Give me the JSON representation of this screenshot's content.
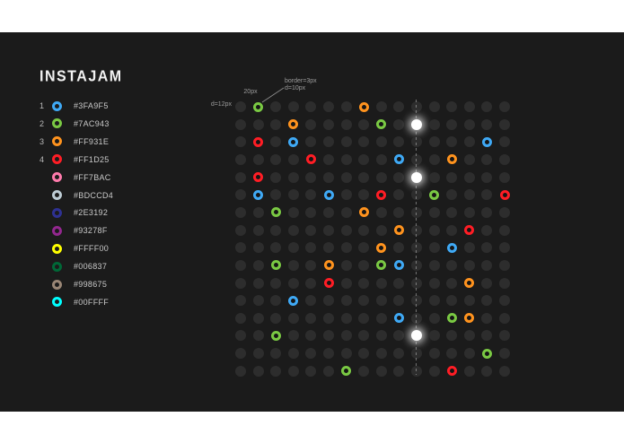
{
  "title": "INSTAJAM",
  "colors": {
    "page_bg": "#FFFFFF",
    "canvas_bg": "#1B1B1B",
    "grid_dot": "#2D2D2D",
    "white_dot": "#FFFFFF",
    "text": "#C9C9C9",
    "annotation_text": "#9C9C9C"
  },
  "palette": [
    {
      "number": "1",
      "hex": "#3FA9F5"
    },
    {
      "number": "2",
      "hex": "#7AC943"
    },
    {
      "number": "3",
      "hex": "#FF931E"
    },
    {
      "number": "4",
      "hex": "#FF1D25"
    },
    {
      "number": "",
      "hex": "#FF7BAC"
    },
    {
      "number": "",
      "hex": "#BDCCD4"
    },
    {
      "number": "",
      "hex": "#2E3192"
    },
    {
      "number": "",
      "hex": "#93278F"
    },
    {
      "number": "",
      "hex": "#FFFF00"
    },
    {
      "number": "",
      "hex": "#006837"
    },
    {
      "number": "",
      "hex": "#998675"
    },
    {
      "number": "",
      "hex": "#00FFFF"
    }
  ],
  "annotations": {
    "dot_diameter_label": "d=12px",
    "spacing_label": "20px",
    "border_label": "border=3px",
    "ring_diameter_label": "d=10px"
  },
  "grid": {
    "cols": 16,
    "rows": 16,
    "dashed_line_col": 10,
    "rings": [
      {
        "col": 1,
        "row": 0,
        "color": "#7AC943"
      },
      {
        "col": 7,
        "row": 0,
        "color": "#FF931E"
      },
      {
        "col": 3,
        "row": 1,
        "color": "#FF931E"
      },
      {
        "col": 8,
        "row": 1,
        "color": "#7AC943"
      },
      {
        "col": 1,
        "row": 2,
        "color": "#FF1D25"
      },
      {
        "col": 3,
        "row": 2,
        "color": "#3FA9F5"
      },
      {
        "col": 14,
        "row": 2,
        "color": "#3FA9F5"
      },
      {
        "col": 4,
        "row": 3,
        "color": "#FF1D25"
      },
      {
        "col": 9,
        "row": 3,
        "color": "#3FA9F5"
      },
      {
        "col": 12,
        "row": 3,
        "color": "#FF931E"
      },
      {
        "col": 1,
        "row": 4,
        "color": "#FF1D25"
      },
      {
        "col": 1,
        "row": 5,
        "color": "#3FA9F5"
      },
      {
        "col": 5,
        "row": 5,
        "color": "#3FA9F5"
      },
      {
        "col": 8,
        "row": 5,
        "color": "#FF1D25"
      },
      {
        "col": 11,
        "row": 5,
        "color": "#7AC943"
      },
      {
        "col": 15,
        "row": 5,
        "color": "#FF1D25"
      },
      {
        "col": 2,
        "row": 6,
        "color": "#7AC943"
      },
      {
        "col": 7,
        "row": 6,
        "color": "#FF931E"
      },
      {
        "col": 9,
        "row": 7,
        "color": "#FF931E"
      },
      {
        "col": 13,
        "row": 7,
        "color": "#FF1D25"
      },
      {
        "col": 8,
        "row": 8,
        "color": "#FF931E"
      },
      {
        "col": 12,
        "row": 8,
        "color": "#3FA9F5"
      },
      {
        "col": 2,
        "row": 9,
        "color": "#7AC943"
      },
      {
        "col": 5,
        "row": 9,
        "color": "#FF931E"
      },
      {
        "col": 8,
        "row": 9,
        "color": "#7AC943"
      },
      {
        "col": 9,
        "row": 9,
        "color": "#3FA9F5"
      },
      {
        "col": 5,
        "row": 10,
        "color": "#FF1D25"
      },
      {
        "col": 13,
        "row": 10,
        "color": "#FF931E"
      },
      {
        "col": 3,
        "row": 11,
        "color": "#3FA9F5"
      },
      {
        "col": 9,
        "row": 12,
        "color": "#3FA9F5"
      },
      {
        "col": 12,
        "row": 12,
        "color": "#7AC943"
      },
      {
        "col": 13,
        "row": 12,
        "color": "#FF931E"
      },
      {
        "col": 2,
        "row": 13,
        "color": "#7AC943"
      },
      {
        "col": 14,
        "row": 14,
        "color": "#7AC943"
      },
      {
        "col": 6,
        "row": 15,
        "color": "#7AC943"
      },
      {
        "col": 12,
        "row": 15,
        "color": "#FF1D25"
      }
    ],
    "white_dots": [
      {
        "col": 10,
        "row": 1
      },
      {
        "col": 10,
        "row": 4
      },
      {
        "col": 10,
        "row": 13
      }
    ]
  }
}
